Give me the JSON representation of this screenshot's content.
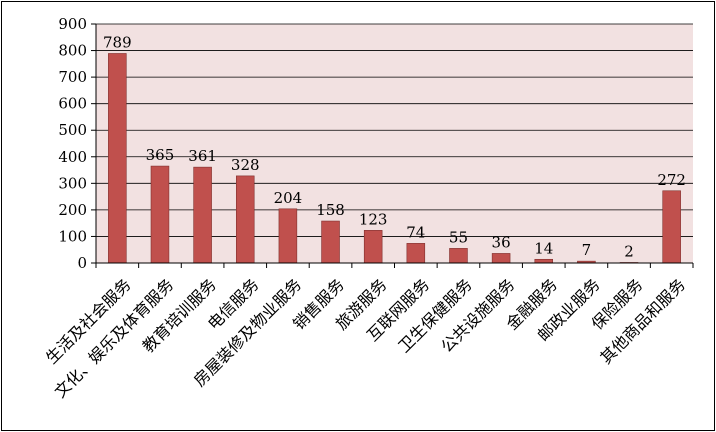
{
  "colors": {
    "plot_bg": "#f2e1e1",
    "bar": "#c0504d",
    "bar_edge": "#7f2f2d",
    "grid": "#000000",
    "axis": "#000000",
    "text": "#000000"
  },
  "chart_data": {
    "type": "bar",
    "title": "",
    "xlabel": "",
    "ylabel": "",
    "ylim": [
      0,
      900
    ],
    "yticks": [
      0,
      100,
      200,
      300,
      400,
      500,
      600,
      700,
      800,
      900
    ],
    "grid": true,
    "legend": "none",
    "categories": [
      "生活及社会服务",
      "文化、娱乐及体育服务",
      "教育培训服务",
      "电信服务",
      "房屋装修及物业服务",
      "销售服务",
      "旅游服务",
      "互联网服务",
      "卫生保健服务",
      "公共设施服务",
      "金融服务",
      "邮政业服务",
      "保险服务",
      "其他商品和服务"
    ],
    "values": [
      789,
      365,
      361,
      328,
      204,
      158,
      123,
      74,
      55,
      36,
      14,
      7,
      2,
      272
    ],
    "data_labels": [
      "789",
      "365",
      "361",
      "328",
      "204",
      "158",
      "123",
      "74",
      "55",
      "36",
      "14",
      "7",
      "2",
      "272"
    ]
  }
}
